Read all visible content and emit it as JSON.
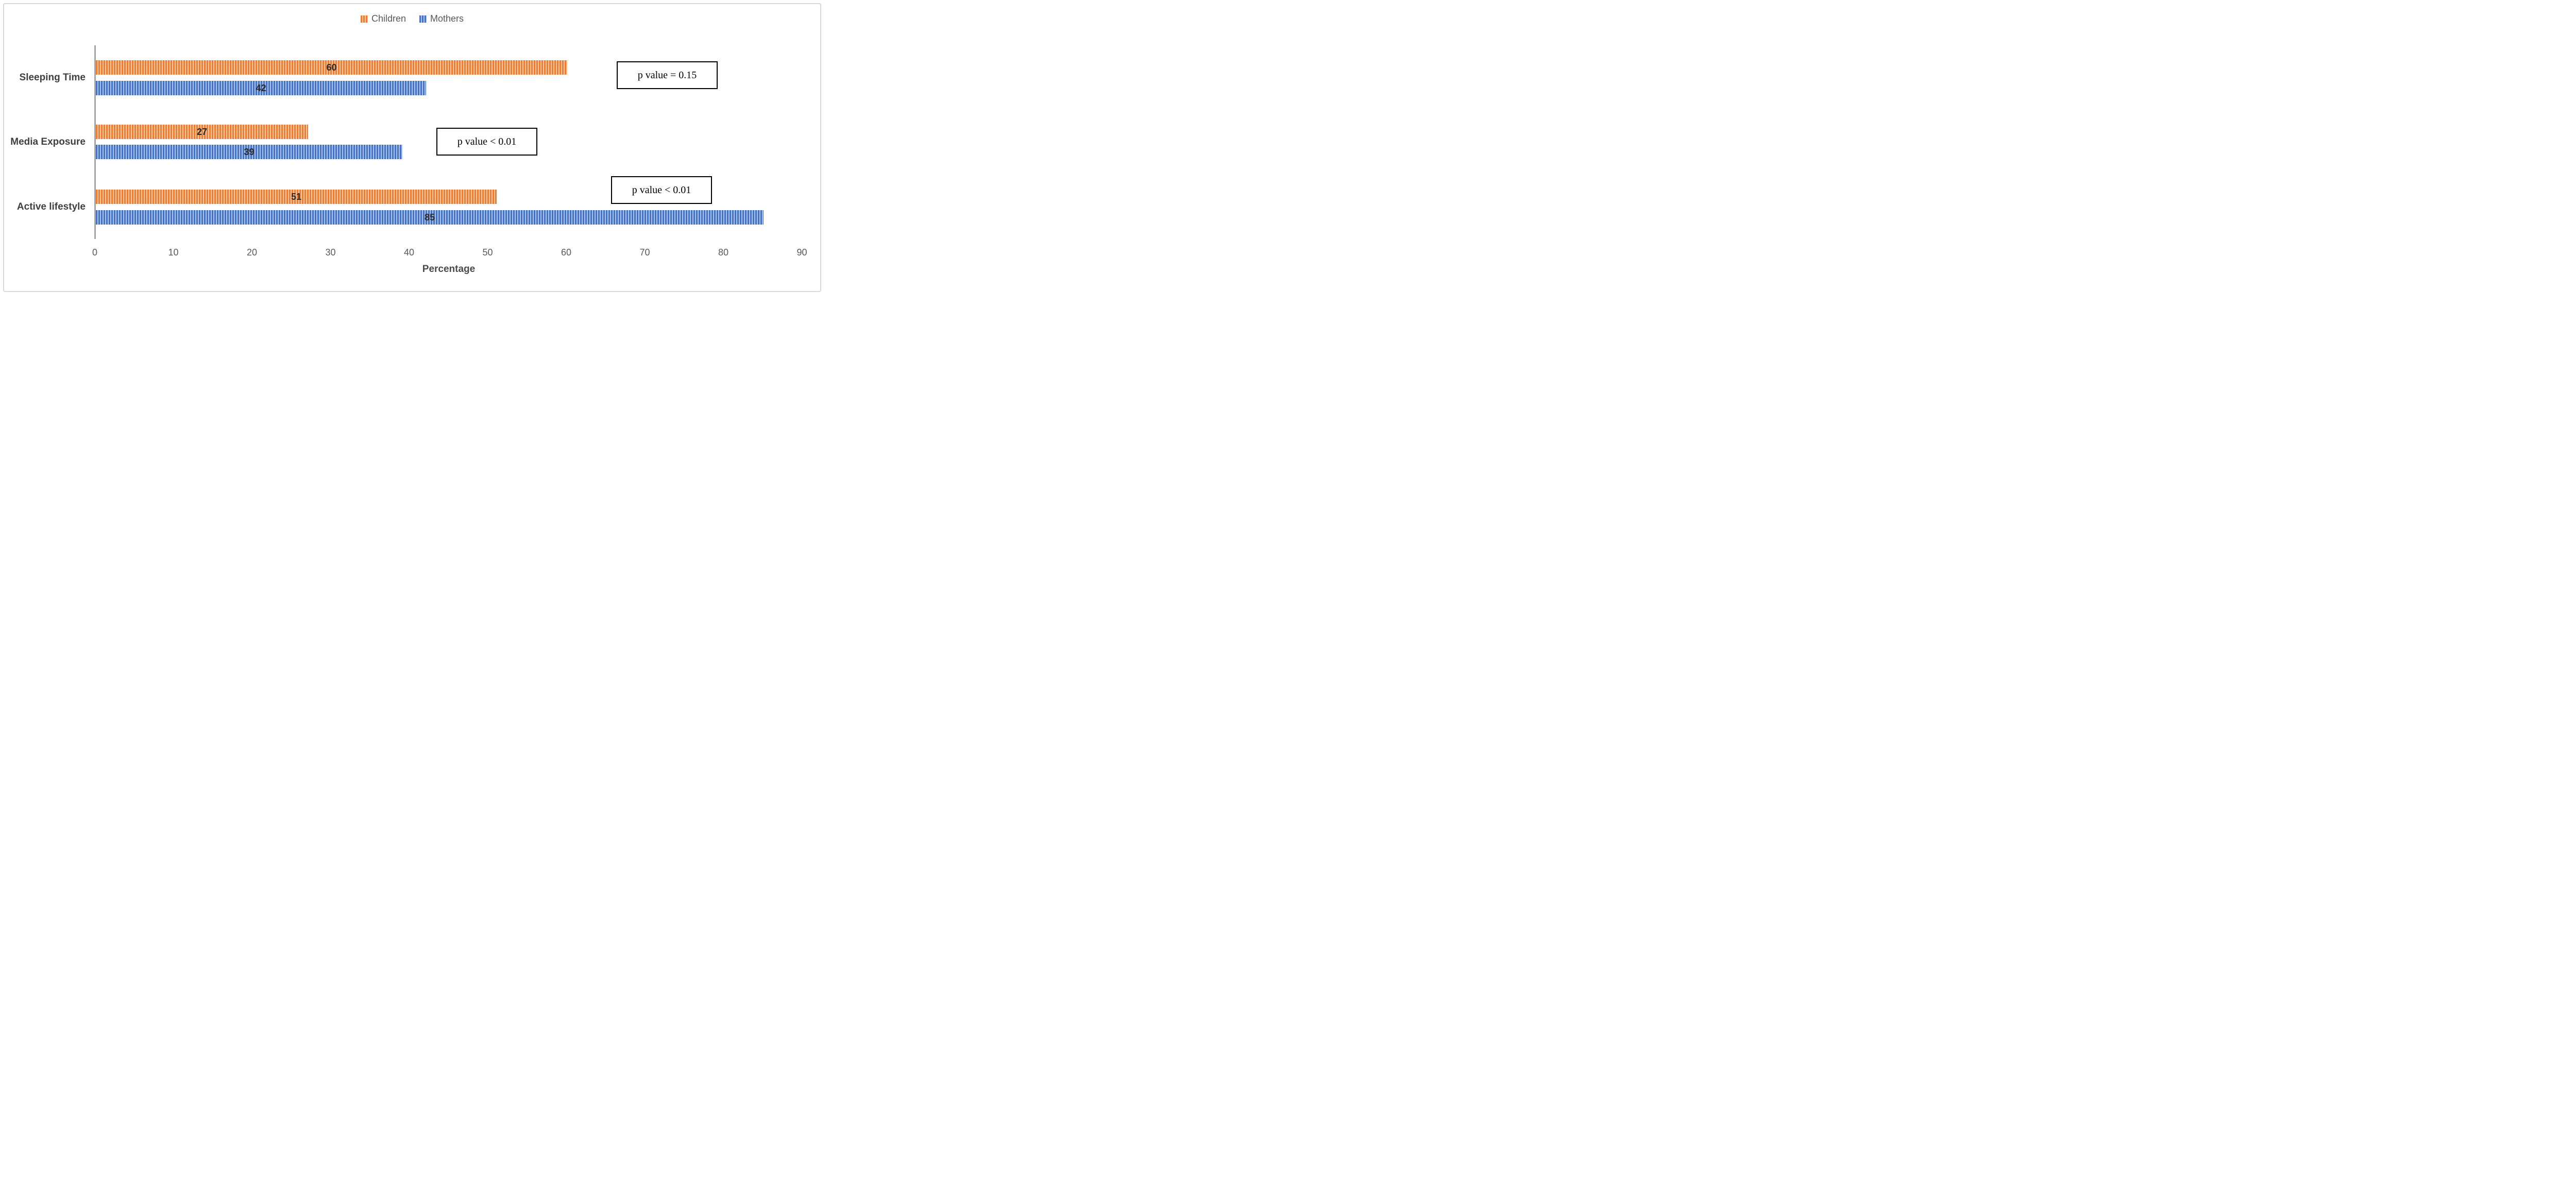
{
  "chart_data": {
    "type": "bar",
    "orientation": "horizontal",
    "title": "",
    "categories": [
      "Sleeping Time",
      "Media Exposure",
      "Active lifestyle"
    ],
    "series": [
      {
        "name": "Children",
        "color": "#ED7D31",
        "stripe_color": "#F7C9A5",
        "values": [
          60,
          27,
          51
        ]
      },
      {
        "name": "Mothers",
        "color": "#4472C4",
        "stripe_color": "#ADC4EA",
        "values": [
          42,
          39,
          85
        ]
      }
    ],
    "xlabel": "Percentage",
    "ylabel": "",
    "xlim": [
      0,
      90
    ],
    "xticks": [
      0,
      10,
      20,
      30,
      40,
      50,
      60,
      70,
      80,
      90
    ],
    "grid": false,
    "legend_position": "top-center",
    "value_labels": "inside-center",
    "bar_fill_pattern": "light-vertical-stripes",
    "annotations": [
      {
        "text": "p value = 0.15",
        "category": "Sleeping Time"
      },
      {
        "text": "p value < 0.01",
        "category": "Media Exposure"
      },
      {
        "text": "p value < 0.01",
        "category": "Active lifestyle"
      }
    ],
    "axis_color": "#A6A6A6",
    "tick_label_color": "#595959",
    "category_label_color": "#3F3F3F",
    "frame_border_color": "#D9D9D9"
  }
}
